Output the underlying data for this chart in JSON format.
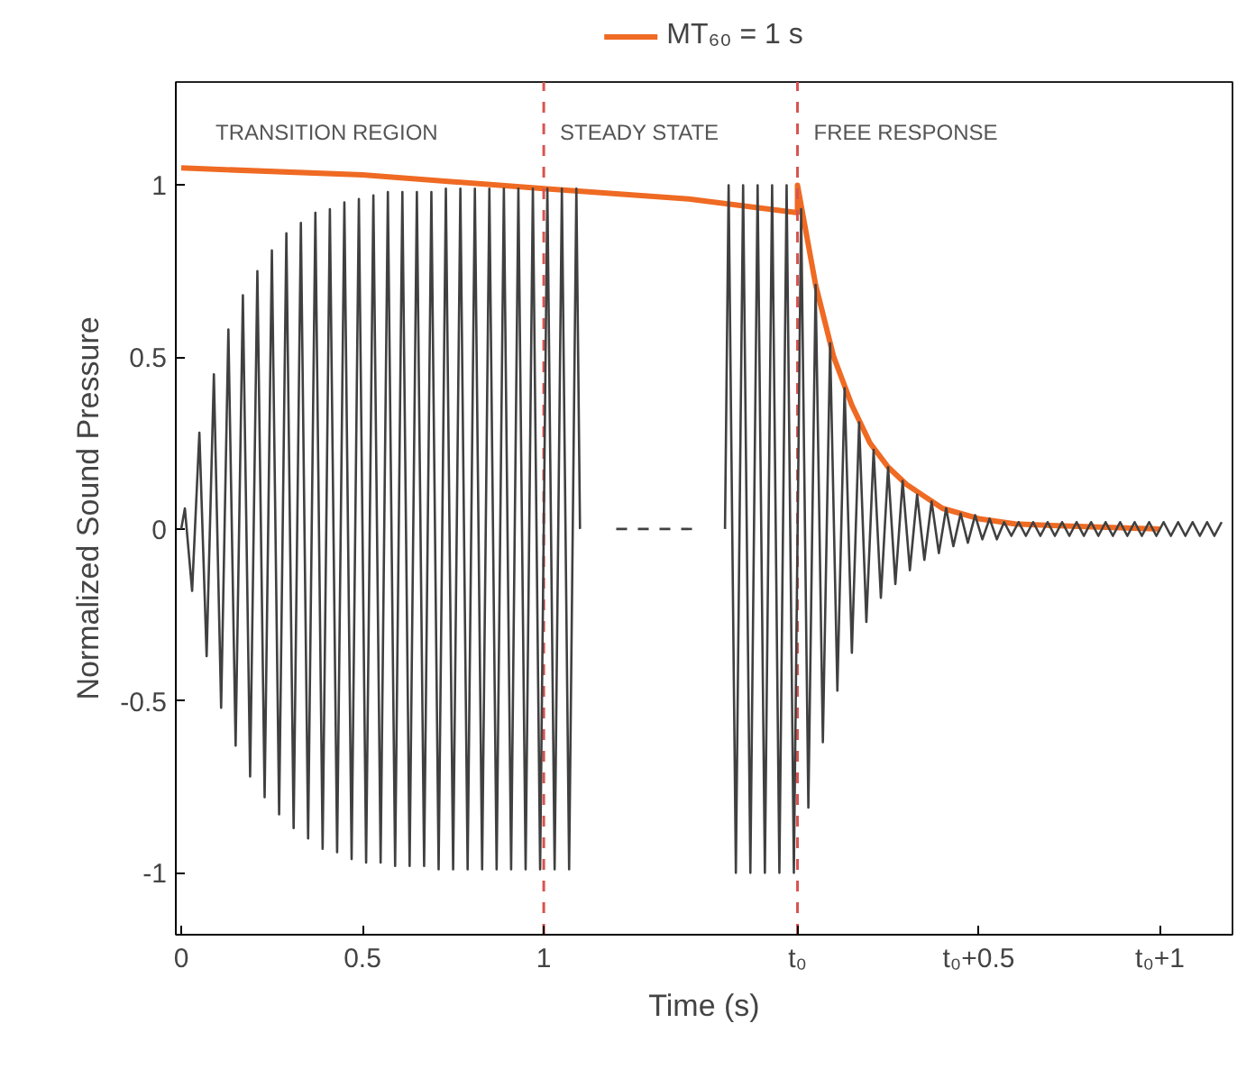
{
  "chart_data": {
    "type": "line",
    "xlabel": "Time (s)",
    "ylabel": "Normalized Sound Pressure",
    "xlim": [
      -0.015,
      2.9
    ],
    "ylim": [
      -1.18,
      1.3
    ],
    "xticks": [
      0,
      0.5,
      1,
      {
        "value": 1.7,
        "label": "t₀"
      },
      {
        "value": 2.2,
        "label": "t₀+0.5"
      },
      {
        "value": 2.7,
        "label": "t₀+1"
      }
    ],
    "yticks": [
      -1,
      -0.5,
      0,
      0.5,
      1
    ],
    "grid": false,
    "legend": "top",
    "line_style": "solid",
    "series": [
      {
        "color": "#404040",
        "x": [
          0,
          0.01,
          0.03,
          0.05,
          0.07,
          0.09,
          0.11,
          0.13,
          0.15,
          0.17,
          0.19,
          0.21,
          0.23,
          0.25,
          0.27,
          0.29,
          0.31,
          0.33,
          0.35,
          0.37,
          0.39,
          0.41,
          0.43,
          0.45,
          0.47,
          0.49,
          0.51,
          0.53,
          0.55,
          0.57,
          0.59,
          0.61,
          0.63,
          0.65,
          0.67,
          0.69,
          0.71,
          0.73,
          0.75,
          0.77,
          0.79,
          0.81,
          0.83,
          0.85,
          0.87,
          0.89,
          0.91,
          0.93,
          0.95,
          0.97,
          0.99,
          1.01,
          1.03,
          1.05,
          1.07,
          1.09,
          1.1
        ],
        "values": [
          0,
          0.06,
          -0.18,
          0.28,
          -0.37,
          0.45,
          -0.52,
          0.58,
          -0.63,
          0.68,
          -0.72,
          0.75,
          -0.78,
          0.81,
          -0.83,
          0.86,
          -0.87,
          0.89,
          -0.9,
          0.92,
          -0.93,
          0.93,
          -0.94,
          0.95,
          -0.96,
          0.96,
          -0.97,
          0.97,
          -0.97,
          0.98,
          -0.98,
          0.98,
          -0.98,
          0.98,
          -0.98,
          0.98,
          -0.99,
          0.99,
          -0.99,
          0.99,
          -0.99,
          0.99,
          -0.99,
          0.99,
          -0.99,
          0.99,
          -0.99,
          0.99,
          -0.99,
          0.99,
          -0.99,
          0.99,
          -0.99,
          0.99,
          -0.99,
          0.99,
          0
        ]
      },
      {
        "color": "#404040",
        "line_style": "dashed",
        "x": [
          1.2,
          1.42
        ],
        "values": [
          0,
          0
        ]
      },
      {
        "color": "#404040",
        "x": [
          1.5,
          1.51,
          1.53,
          1.55,
          1.57,
          1.59,
          1.61,
          1.63,
          1.65,
          1.67,
          1.69,
          1.71,
          1.73,
          1.75,
          1.77,
          1.79,
          1.81,
          1.83,
          1.85,
          1.87,
          1.89,
          1.91,
          1.93,
          1.95,
          1.97,
          1.99,
          2.01,
          2.03,
          2.05,
          2.07,
          2.09,
          2.11,
          2.13,
          2.15,
          2.17,
          2.19,
          2.21,
          2.23,
          2.25,
          2.27,
          2.29,
          2.31,
          2.33,
          2.35,
          2.37,
          2.39,
          2.41,
          2.43,
          2.45,
          2.47,
          2.49,
          2.51,
          2.53,
          2.55,
          2.57,
          2.59,
          2.61,
          2.63,
          2.65,
          2.67,
          2.69,
          2.71,
          2.73,
          2.75,
          2.77,
          2.79,
          2.81,
          2.83,
          2.85,
          2.87
        ],
        "values": [
          0,
          1,
          -1,
          1,
          -1,
          1,
          -1,
          1,
          -1,
          1,
          -1,
          0.93,
          -0.81,
          0.71,
          -0.62,
          0.54,
          -0.47,
          0.41,
          -0.36,
          0.31,
          -0.27,
          0.23,
          -0.2,
          0.18,
          -0.16,
          0.14,
          -0.12,
          0.1,
          -0.09,
          0.08,
          -0.07,
          0.06,
          -0.05,
          0.045,
          -0.04,
          0.04,
          -0.03,
          0.03,
          -0.03,
          0.02,
          -0.02,
          0.02,
          -0.02,
          0.02,
          -0.02,
          0.02,
          -0.02,
          0.02,
          -0.02,
          0.02,
          -0.02,
          0.02,
          -0.02,
          0.02,
          -0.02,
          0.02,
          -0.02,
          0.02,
          -0.02,
          0.02,
          -0.02,
          0.02,
          -0.02,
          0.02,
          -0.02,
          0.02,
          -0.02,
          0.02,
          -0.02,
          0.02
        ]
      },
      {
        "name": "MT₆₀ = 1 s",
        "color": "#ef6a23",
        "x": [
          0,
          0.5,
          1,
          1.4,
          1.7,
          1.7,
          1.75,
          1.8,
          1.85,
          1.9,
          1.95,
          2,
          2.1,
          2.2,
          2.3,
          2.4,
          2.7
        ],
        "values": [
          1.05,
          1.03,
          0.99,
          0.96,
          0.92,
          1,
          0.71,
          0.5,
          0.36,
          0.25,
          0.18,
          0.13,
          0.06,
          0.03,
          0.015,
          0.01,
          0
        ]
      }
    ],
    "ref_lines": [
      {
        "axis": "x",
        "value": 1,
        "color": "#d9534f",
        "line_style": "dashed"
      },
      {
        "axis": "x",
        "value": 1.7,
        "color": "#d9534f",
        "line_style": "dashed"
      }
    ],
    "annotations": [
      "TRANSITION REGION",
      "STEADY STATE",
      "FREE RESPONSE"
    ]
  }
}
